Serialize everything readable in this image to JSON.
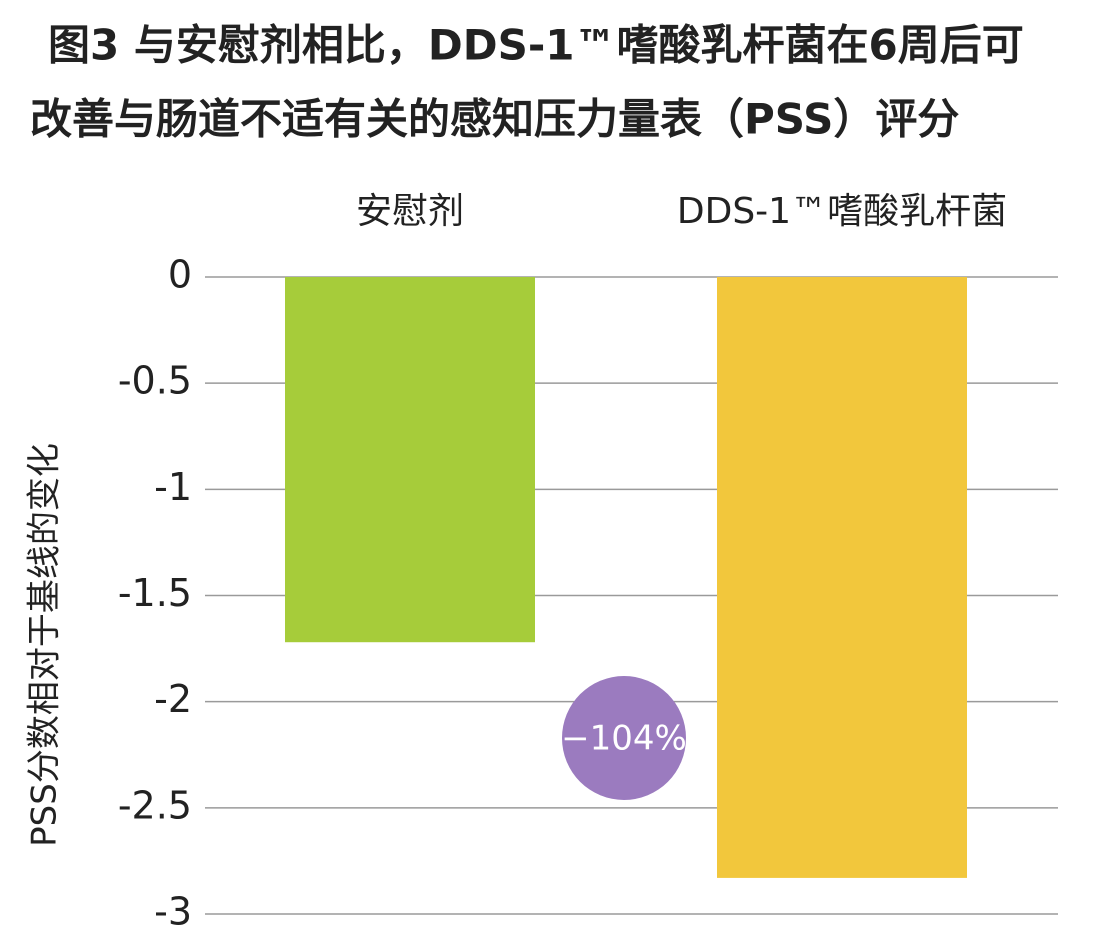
{
  "chart_data": {
    "type": "bar",
    "title": [
      "图3 与安慰剂相比，DDS-1™嗜酸乳杆菌在6周后可",
      "改善与肠道不适有关的感知压力量表（PSS）评分"
    ],
    "y_label": "PSS分数相对于基线的变化",
    "categories": [
      "安慰剂",
      "DDS-1™嗜酸乳杆菌"
    ],
    "values": [
      -1.72,
      -2.83
    ],
    "colors": [
      "#a6cc3a",
      "#f2c73c"
    ],
    "annotation": "−104%",
    "annotation_color": "#9b7bbf",
    "ylim": [
      0,
      -3
    ],
    "yticks": [
      0,
      -0.5,
      -1,
      -1.5,
      -2,
      -2.5,
      -3
    ],
    "grid": true
  }
}
